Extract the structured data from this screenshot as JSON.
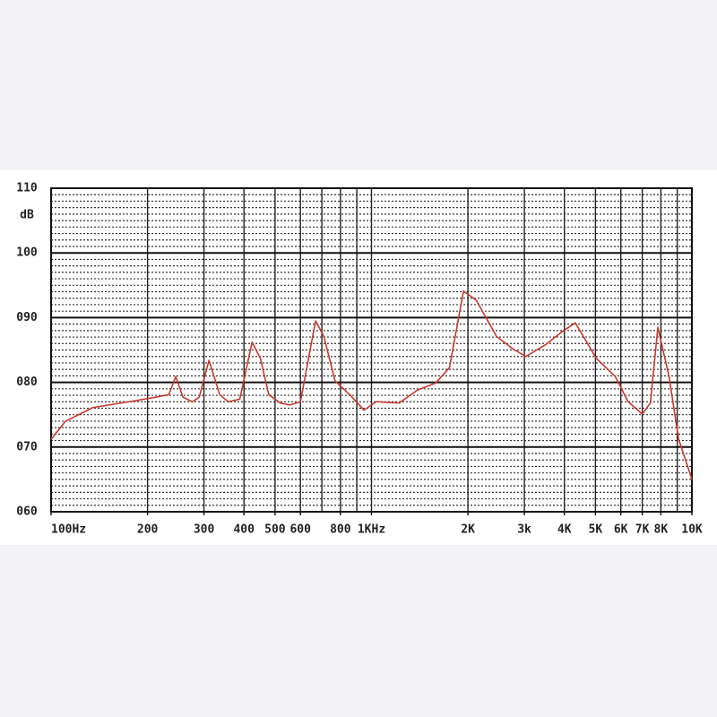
{
  "chart_data": {
    "type": "line",
    "ylabel": "dB",
    "x": [
      100,
      111,
      135,
      175,
      212,
      233,
      245,
      258,
      276,
      290,
      311,
      336,
      357,
      388,
      424,
      450,
      478,
      519,
      556,
      600,
      669,
      710,
      770,
      855,
      948,
      1033,
      1219,
      1391,
      1587,
      1752,
      1937,
      2122,
      2456,
      2774,
      3035,
      3490,
      3927,
      4326,
      5031,
      5764,
      6324,
      7000,
      7420,
      7830,
      8483,
      9093,
      10000
    ],
    "series": [
      {
        "color": "#c8392e",
        "values": [
          71.2,
          74.0,
          76.1,
          77.0,
          77.7,
          78.1,
          80.9,
          77.7,
          77.0,
          77.7,
          83.4,
          78.1,
          77.0,
          77.4,
          86.2,
          83.7,
          78.1,
          76.8,
          76.5,
          77.0,
          89.5,
          87.1,
          80.2,
          78.1,
          75.7,
          77.0,
          76.8,
          78.8,
          79.9,
          82.3,
          94.1,
          92.7,
          87.1,
          85.1,
          84.0,
          85.8,
          87.8,
          89.2,
          83.7,
          80.9,
          77.0,
          75.1,
          76.8,
          88.5,
          80.9,
          71.2,
          65.0
        ]
      }
    ],
    "xscale": "log",
    "xlim": [
      100,
      10000
    ],
    "xticks": [
      {
        "value": 100,
        "label": "100Hz"
      },
      200,
      300,
      400,
      500,
      600,
      800,
      {
        "value": 1000,
        "label": "1KHz"
      },
      {
        "value": 2000,
        "label": "2K"
      },
      {
        "value": 3000,
        "label": "3k"
      },
      {
        "value": 4000,
        "label": "4K"
      },
      {
        "value": 5000,
        "label": "5K"
      },
      {
        "value": 6000,
        "label": "6K"
      },
      {
        "value": 7000,
        "label": "7K"
      },
      {
        "value": 8000,
        "label": "8K"
      },
      {
        "value": 10000,
        "label": "10K"
      }
    ],
    "xgrid": [
      100,
      200,
      300,
      400,
      500,
      600,
      700,
      800,
      900,
      1000,
      2000,
      3000,
      4000,
      5000,
      6000,
      7000,
      8000,
      9000,
      10000
    ],
    "ylim": [
      60,
      110
    ],
    "yticks": [
      {
        "value": 60,
        "label": "060"
      },
      {
        "value": 70,
        "label": "070"
      },
      {
        "value": 80,
        "label": "080"
      },
      {
        "value": 90,
        "label": "090"
      },
      100,
      110
    ],
    "yminor": [
      61,
      62,
      63,
      64,
      65,
      66,
      67,
      68,
      69,
      71,
      72,
      73,
      74,
      75,
      76,
      77,
      78,
      79,
      81,
      82,
      83,
      84,
      85,
      86,
      87,
      88,
      89,
      91,
      92,
      93,
      94,
      95,
      96,
      97,
      98,
      99,
      101,
      102,
      103,
      104,
      105,
      106,
      107,
      108,
      109
    ],
    "grid": true
  }
}
